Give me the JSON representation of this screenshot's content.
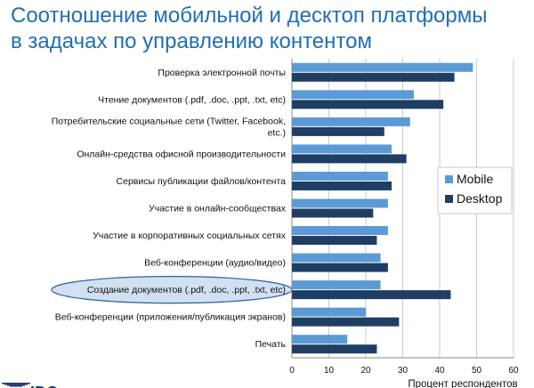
{
  "slide": {
    "title_line1": "Соотношение мобильной и десктоп платформы",
    "title_line2": "в задачах по управлению контентом",
    "logo_text": "IDC"
  },
  "colors": {
    "title": "#1f6fb2",
    "mobile": "#5b9bd5",
    "desktop": "#1f3e64",
    "highlight_ellipse": "#c9dcf0"
  },
  "chart_data": {
    "type": "bar",
    "orientation": "horizontal",
    "categories": [
      "Проверка электронной почты",
      "Чтение документов (.pdf, .doc, .ppt, .txt, etc)",
      "Потребительские социальные сети (Twitter, Facebook, etc.)",
      "Онлайн-средства офисной производительности",
      "Сервисы публикации файлов/контента",
      "Участие в онлайн-сообществах",
      "Участие в корпоративных социальных сетях",
      "Веб-конференции (аудио/видео)",
      "Создание документов (.pdf, .doc, .ppt, .txt, etc)",
      "Веб-конференции (приложения/публикация экранов)",
      "Печать"
    ],
    "category_lines": [
      [
        "Проверка электронной почты"
      ],
      [
        "Чтение документов (.pdf, .doc, .ppt, .txt, etc)"
      ],
      [
        "Потребительские социальные сети (Twitter, Facebook,",
        "etc.)"
      ],
      [
        "Онлайн-средства офисной производительности"
      ],
      [
        "Сервисы публикации файлов/контента"
      ],
      [
        "Участие в онлайн-сообществах"
      ],
      [
        "Участие в корпоративных социальных сетях"
      ],
      [
        "Веб-конференции (аудио/видео)"
      ],
      [
        "Создание документов (.pdf, .doc, .ppt, .txt, etc)"
      ],
      [
        "Веб-конференции (приложения/публикация экранов)"
      ],
      [
        "Печать"
      ]
    ],
    "highlighted_category_index": 8,
    "series": [
      {
        "name": "Mobile",
        "values": [
          49,
          33,
          32,
          27,
          26,
          26,
          26,
          24,
          24,
          20,
          15
        ]
      },
      {
        "name": "Desktop",
        "values": [
          44,
          41,
          25,
          31,
          27,
          22,
          23,
          26,
          43,
          29,
          23
        ]
      }
    ],
    "xlabel": "Процент респондентов",
    "ylabel": "",
    "xlim": [
      0,
      60
    ],
    "xticks": [
      0,
      10,
      20,
      30,
      40,
      50,
      60
    ],
    "grid": "vertical",
    "legend_position": "right"
  }
}
